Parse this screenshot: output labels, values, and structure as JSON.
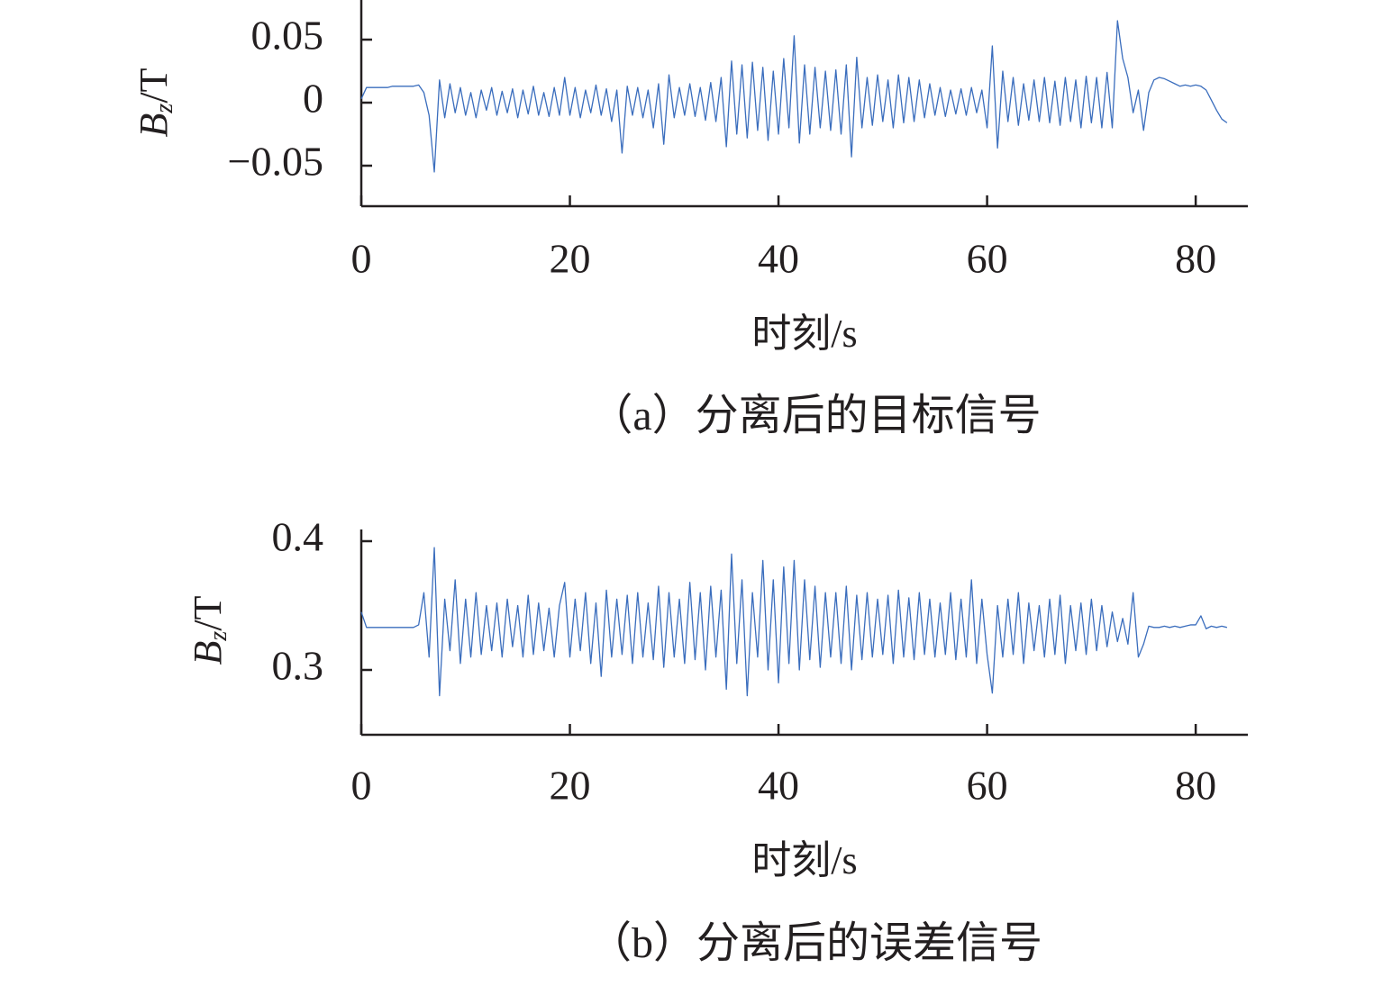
{
  "chart_data": [
    {
      "type": "line",
      "title": "（a）分离后的目标信号",
      "xlabel": "时刻/s",
      "ylabel_main": "B",
      "ylabel_sub": "z",
      "ylabel_unit": "/T",
      "xlim": [
        0,
        85
      ],
      "xticks": [
        0,
        20,
        40,
        60,
        80
      ],
      "ylim": [
        -0.08,
        0.08
      ],
      "yticks": [
        {
          "value": -0.05,
          "label": "−0.05"
        },
        0,
        0.05
      ],
      "color": "#3a6dbd",
      "x": [
        0,
        0.5,
        1,
        1.5,
        2,
        2.5,
        3,
        3.5,
        4,
        4.5,
        5,
        5.5,
        6,
        6.5,
        7,
        7.5,
        8,
        8.5,
        9,
        9.5,
        10,
        10.5,
        11,
        11.5,
        12,
        12.5,
        13,
        13.5,
        14,
        14.5,
        15,
        15.5,
        16,
        16.5,
        17,
        17.5,
        18,
        18.5,
        19,
        19.5,
        20,
        20.5,
        21,
        21.5,
        22,
        22.5,
        23,
        23.5,
        24,
        24.5,
        25,
        25.5,
        26,
        26.5,
        27,
        27.5,
        28,
        28.5,
        29,
        29.5,
        30,
        30.5,
        31,
        31.5,
        32,
        32.5,
        33,
        33.5,
        34,
        34.5,
        35,
        35.5,
        36,
        36.5,
        37,
        37.5,
        38,
        38.5,
        39,
        39.5,
        40,
        40.5,
        41,
        41.5,
        42,
        42.5,
        43,
        43.5,
        44,
        44.5,
        45,
        45.5,
        46,
        46.5,
        47,
        47.5,
        48,
        48.5,
        49,
        49.5,
        50,
        50.5,
        51,
        51.5,
        52,
        52.5,
        53,
        53.5,
        54,
        54.5,
        55,
        55.5,
        56,
        56.5,
        57,
        57.5,
        58,
        58.5,
        59,
        59.5,
        60,
        60.5,
        61,
        61.5,
        62,
        62.5,
        63,
        63.5,
        64,
        64.5,
        65,
        65.5,
        66,
        66.5,
        67,
        67.5,
        68,
        68.5,
        69,
        69.5,
        70,
        70.5,
        71,
        71.5,
        72,
        72.5,
        73,
        73.5,
        74,
        74.5,
        75,
        75.5,
        76,
        76.5,
        77,
        77.5,
        78,
        78.5,
        79,
        79.5,
        80,
        80.5,
        81,
        81.5,
        82,
        82.5,
        83
      ],
      "values": [
        0.003,
        0.012,
        0.012,
        0.012,
        0.012,
        0.012,
        0.013,
        0.013,
        0.013,
        0.013,
        0.013,
        0.014,
        0.008,
        -0.01,
        -0.055,
        0.018,
        -0.012,
        0.015,
        -0.008,
        0.012,
        -0.01,
        0.008,
        -0.012,
        0.01,
        -0.006,
        0.012,
        -0.01,
        0.009,
        -0.008,
        0.011,
        -0.012,
        0.01,
        -0.009,
        0.013,
        -0.01,
        0.008,
        -0.011,
        0.012,
        -0.01,
        0.02,
        -0.01,
        0.012,
        -0.012,
        0.01,
        -0.008,
        0.014,
        -0.01,
        0.011,
        -0.015,
        0.01,
        -0.04,
        0.013,
        -0.01,
        0.012,
        -0.012,
        0.01,
        -0.02,
        0.015,
        -0.033,
        0.022,
        -0.012,
        0.012,
        -0.01,
        0.015,
        -0.011,
        0.012,
        -0.014,
        0.016,
        -0.015,
        0.02,
        -0.035,
        0.033,
        -0.025,
        0.03,
        -0.028,
        0.032,
        -0.022,
        0.028,
        -0.03,
        0.025,
        -0.025,
        0.035,
        -0.02,
        0.053,
        -0.032,
        0.03,
        -0.025,
        0.028,
        -0.02,
        0.025,
        -0.022,
        0.026,
        -0.025,
        0.03,
        -0.043,
        0.036,
        -0.02,
        0.02,
        -0.018,
        0.022,
        -0.015,
        0.018,
        -0.02,
        0.022,
        -0.016,
        0.02,
        -0.015,
        0.018,
        -0.012,
        0.015,
        -0.01,
        0.012,
        -0.011,
        0.01,
        -0.009,
        0.011,
        -0.01,
        0.012,
        -0.008,
        0.01,
        -0.02,
        0.045,
        -0.036,
        0.025,
        -0.015,
        0.02,
        -0.018,
        0.015,
        -0.014,
        0.018,
        -0.015,
        0.02,
        -0.016,
        0.017,
        -0.018,
        0.02,
        -0.015,
        0.018,
        -0.02,
        0.021,
        -0.016,
        0.02,
        -0.02,
        0.024,
        -0.02,
        0.065,
        0.035,
        0.02,
        -0.008,
        0.01,
        -0.022,
        0.008,
        0.018,
        0.02,
        0.019,
        0.017,
        0.015,
        0.013,
        0.014,
        0.013,
        0.014,
        0.013,
        0.01,
        0.002,
        -0.006,
        -0.013,
        -0.016
      ]
    },
    {
      "type": "line",
      "title": "（b）分离后的误差信号",
      "xlabel": "时刻/s",
      "ylabel_main": "B",
      "ylabel_sub": "z",
      "ylabel_unit": "/T",
      "xlim": [
        0,
        85
      ],
      "xticks": [
        0,
        20,
        40,
        60,
        80
      ],
      "ylim": [
        0.25,
        0.41
      ],
      "yticks": [
        0.3,
        0.4
      ],
      "color": "#3a6dbd",
      "x": [
        0,
        0.5,
        1,
        1.5,
        2,
        2.5,
        3,
        3.5,
        4,
        4.5,
        5,
        5.5,
        6,
        6.5,
        7,
        7.5,
        8,
        8.5,
        9,
        9.5,
        10,
        10.5,
        11,
        11.5,
        12,
        12.5,
        13,
        13.5,
        14,
        14.5,
        15,
        15.5,
        16,
        16.5,
        17,
        17.5,
        18,
        18.5,
        19,
        19.5,
        20,
        20.5,
        21,
        21.5,
        22,
        22.5,
        23,
        23.5,
        24,
        24.5,
        25,
        25.5,
        26,
        26.5,
        27,
        27.5,
        28,
        28.5,
        29,
        29.5,
        30,
        30.5,
        31,
        31.5,
        32,
        32.5,
        33,
        33.5,
        34,
        34.5,
        35,
        35.5,
        36,
        36.5,
        37,
        37.5,
        38,
        38.5,
        39,
        39.5,
        40,
        40.5,
        41,
        41.5,
        42,
        42.5,
        43,
        43.5,
        44,
        44.5,
        45,
        45.5,
        46,
        46.5,
        47,
        47.5,
        48,
        48.5,
        49,
        49.5,
        50,
        50.5,
        51,
        51.5,
        52,
        52.5,
        53,
        53.5,
        54,
        54.5,
        55,
        55.5,
        56,
        56.5,
        57,
        57.5,
        58,
        58.5,
        59,
        59.5,
        60,
        60.5,
        61,
        61.5,
        62,
        62.5,
        63,
        63.5,
        64,
        64.5,
        65,
        65.5,
        66,
        66.5,
        67,
        67.5,
        68,
        68.5,
        69,
        69.5,
        70,
        70.5,
        71,
        71.5,
        72,
        72.5,
        73,
        73.5,
        74,
        74.5,
        75,
        75.5,
        76,
        76.5,
        77,
        77.5,
        78,
        78.5,
        79,
        79.5,
        80,
        80.5,
        81,
        81.5,
        82,
        82.5,
        83
      ],
      "values": [
        0.345,
        0.333,
        0.333,
        0.333,
        0.333,
        0.333,
        0.333,
        0.333,
        0.333,
        0.333,
        0.333,
        0.335,
        0.36,
        0.31,
        0.395,
        0.28,
        0.355,
        0.315,
        0.37,
        0.305,
        0.355,
        0.31,
        0.36,
        0.312,
        0.35,
        0.315,
        0.352,
        0.31,
        0.355,
        0.318,
        0.35,
        0.31,
        0.358,
        0.312,
        0.352,
        0.315,
        0.348,
        0.31,
        0.35,
        0.368,
        0.31,
        0.355,
        0.315,
        0.36,
        0.305,
        0.352,
        0.295,
        0.362,
        0.31,
        0.355,
        0.312,
        0.358,
        0.305,
        0.36,
        0.31,
        0.352,
        0.308,
        0.365,
        0.302,
        0.36,
        0.31,
        0.355,
        0.305,
        0.368,
        0.308,
        0.36,
        0.3,
        0.365,
        0.31,
        0.362,
        0.285,
        0.39,
        0.305,
        0.37,
        0.28,
        0.36,
        0.31,
        0.385,
        0.3,
        0.37,
        0.29,
        0.38,
        0.305,
        0.385,
        0.3,
        0.37,
        0.308,
        0.365,
        0.302,
        0.36,
        0.31,
        0.36,
        0.305,
        0.365,
        0.3,
        0.358,
        0.308,
        0.36,
        0.31,
        0.355,
        0.312,
        0.358,
        0.305,
        0.362,
        0.31,
        0.356,
        0.308,
        0.36,
        0.312,
        0.355,
        0.31,
        0.352,
        0.312,
        0.36,
        0.308,
        0.355,
        0.31,
        0.37,
        0.305,
        0.355,
        0.312,
        0.282,
        0.35,
        0.31,
        0.355,
        0.312,
        0.36,
        0.305,
        0.352,
        0.315,
        0.35,
        0.31,
        0.355,
        0.312,
        0.358,
        0.305,
        0.35,
        0.315,
        0.352,
        0.312,
        0.355,
        0.315,
        0.35,
        0.318,
        0.345,
        0.322,
        0.34,
        0.32,
        0.36,
        0.31,
        0.32,
        0.334,
        0.333,
        0.333,
        0.334,
        0.333,
        0.334,
        0.333,
        0.334,
        0.335,
        0.335,
        0.342,
        0.332,
        0.334,
        0.333,
        0.334,
        0.333
      ]
    }
  ]
}
